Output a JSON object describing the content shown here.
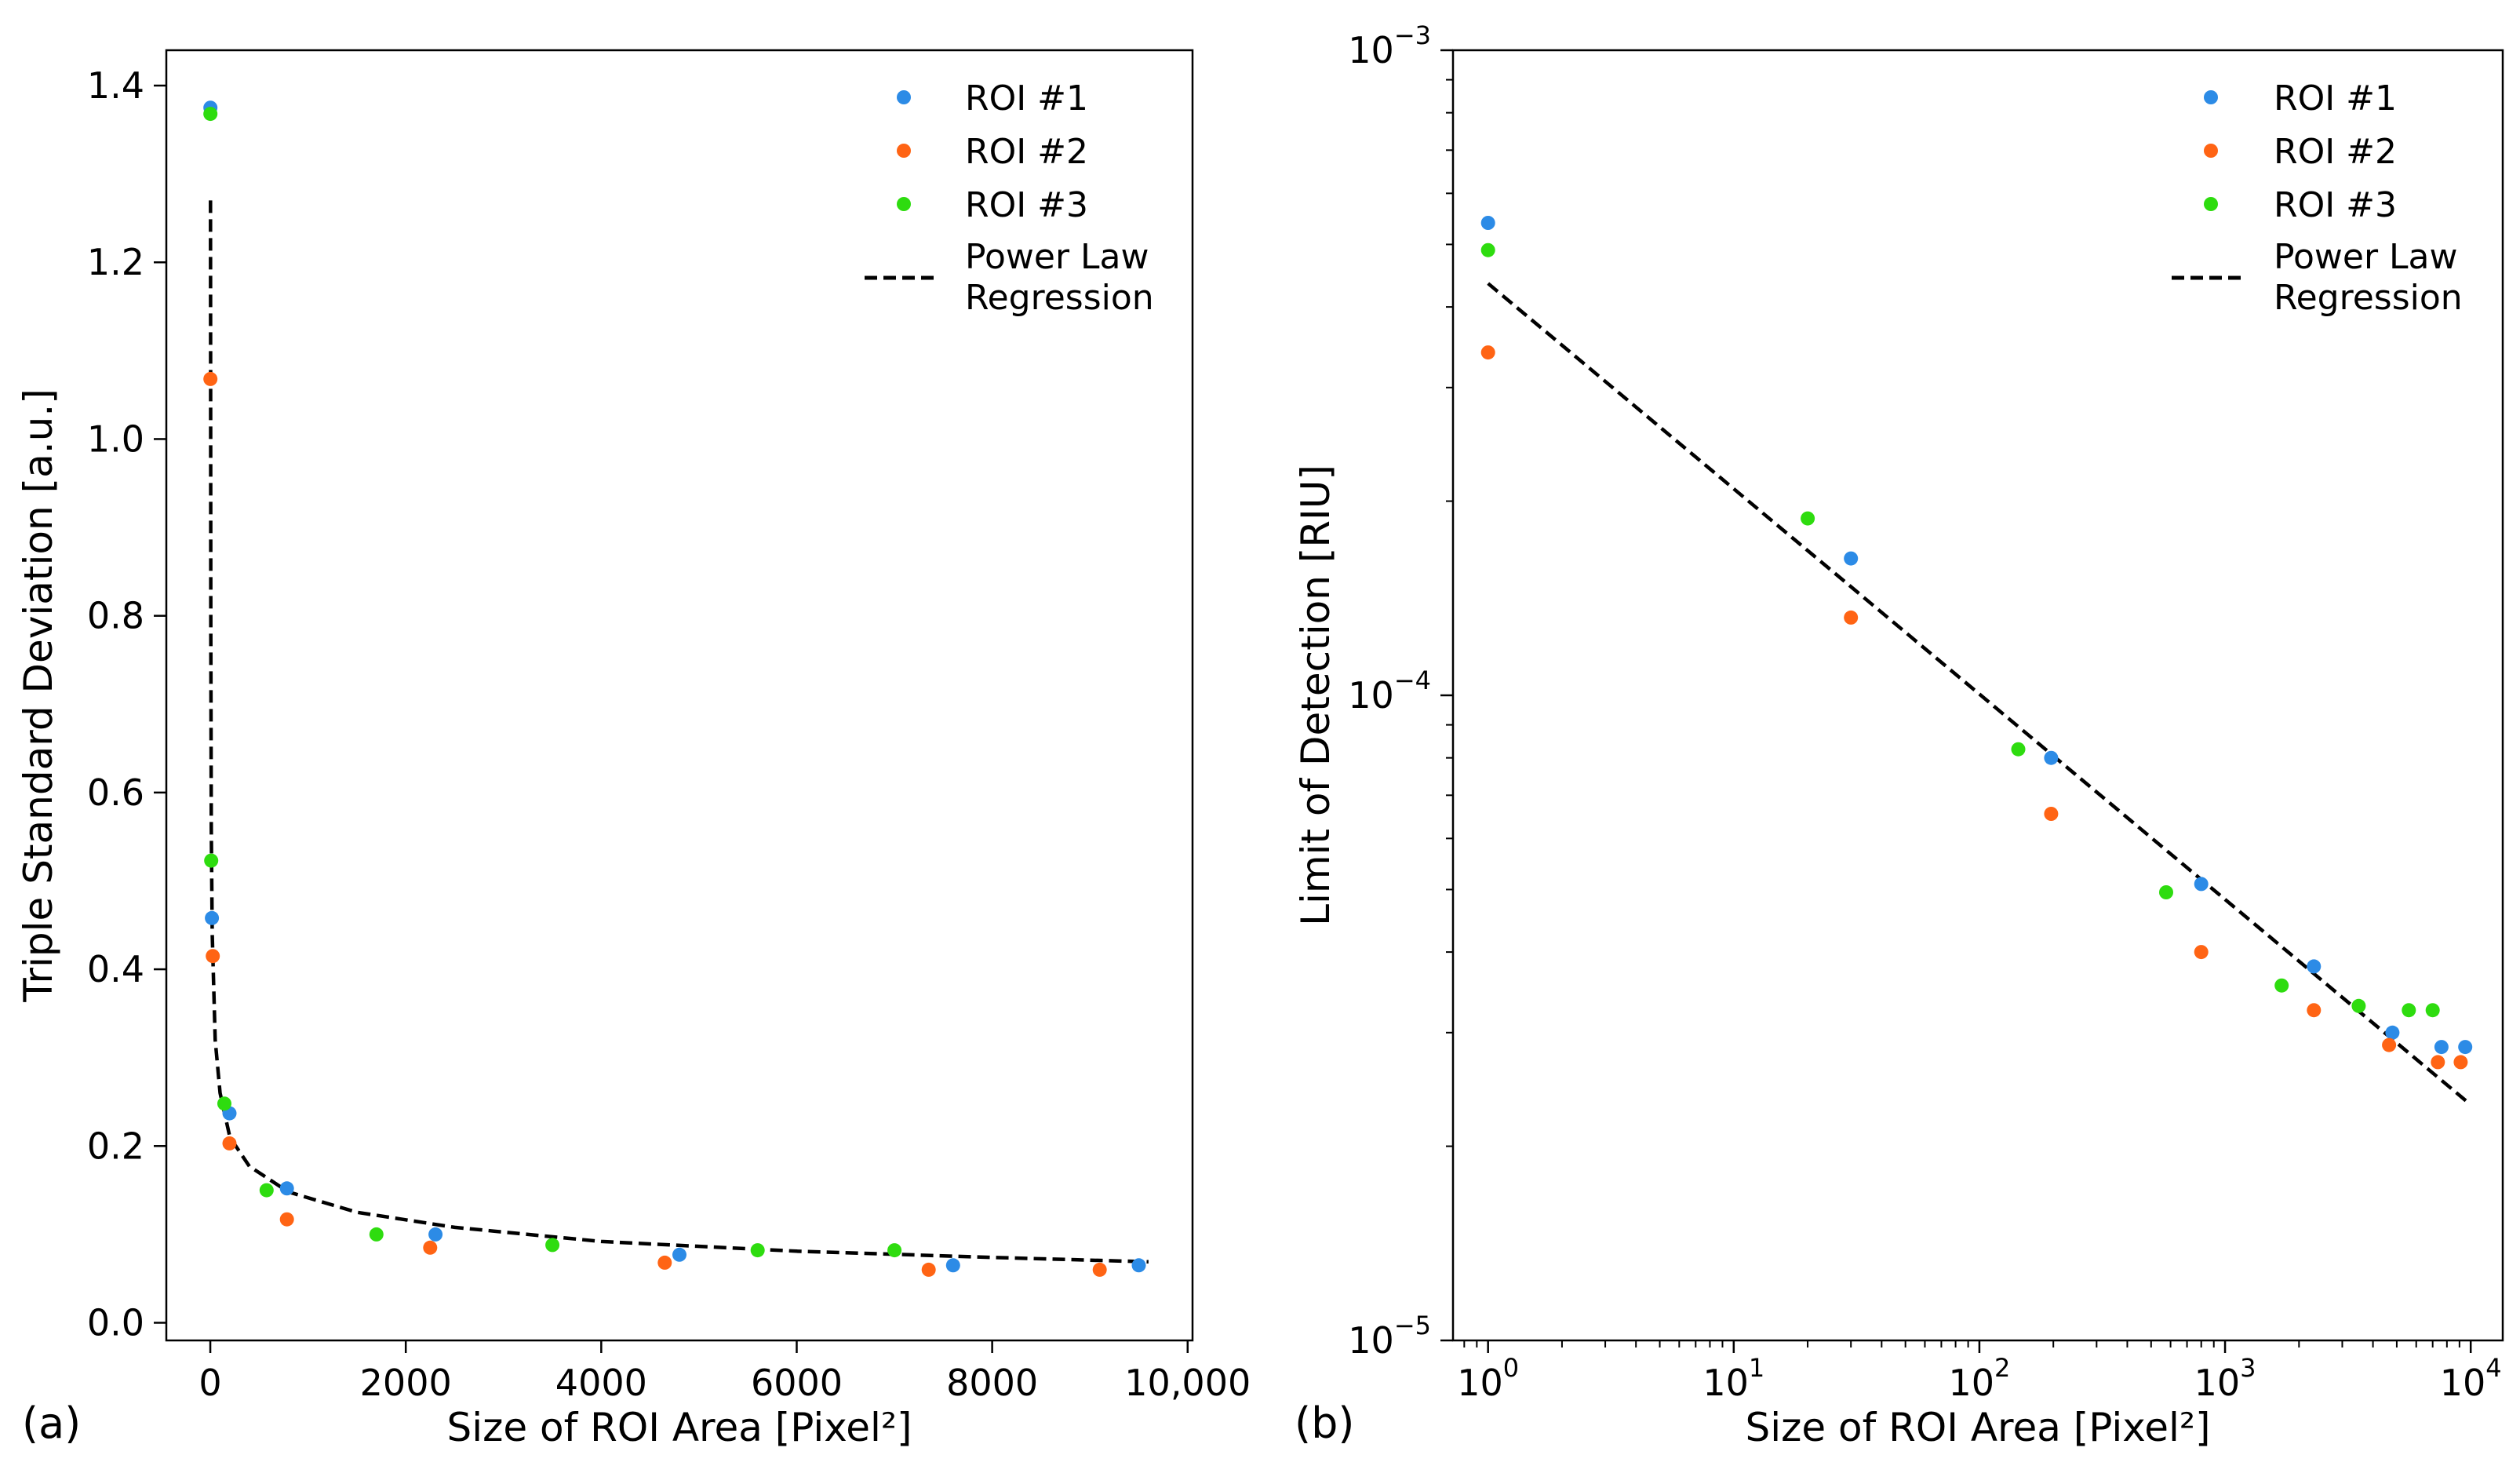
{
  "colors": {
    "roi1": "#2c8be6",
    "roi2": "#ff6414",
    "roi3": "#2edc0f",
    "fit": "#000000"
  },
  "chart_data": [
    {
      "type": "scatter",
      "panel_label": "(a)",
      "xlabel": "Size of ROI Area [Pixel²]",
      "ylabel": "Triple Standard Deviation [a.u.]",
      "xscale": "linear",
      "yscale": "linear",
      "xlim": [
        -450,
        10050
      ],
      "ylim": [
        -0.02,
        1.44
      ],
      "xticks": [
        0,
        2000,
        4000,
        6000,
        8000,
        10000
      ],
      "xtick_labels": [
        "0",
        "2000",
        "4000",
        "6000",
        "8000",
        "10,000"
      ],
      "yticks": [
        0.0,
        0.2,
        0.4,
        0.6,
        0.8,
        1.0,
        1.2,
        1.4
      ],
      "ytick_labels": [
        "0.0",
        "0.2",
        "0.4",
        "0.6",
        "0.8",
        "1.0",
        "1.2",
        "1.4"
      ],
      "legend_position": "top-right",
      "series": [
        {
          "name": "ROI #1",
          "color_key": "roi1",
          "points": [
            [
              1,
              1.375
            ],
            [
              16,
              0.458
            ],
            [
              196,
              0.237
            ],
            [
              784,
              0.152
            ],
            [
              2304,
              0.1
            ],
            [
              4800,
              0.077
            ],
            [
              7600,
              0.065
            ],
            [
              9500,
              0.065
            ]
          ]
        },
        {
          "name": "ROI #2",
          "color_key": "roi2",
          "points": [
            [
              1,
              1.068
            ],
            [
              25,
              0.415
            ],
            [
              196,
              0.203
            ],
            [
              784,
              0.117
            ],
            [
              2250,
              0.085
            ],
            [
              4650,
              0.068
            ],
            [
              7350,
              0.06
            ],
            [
              9100,
              0.06
            ]
          ]
        },
        {
          "name": "ROI #3",
          "color_key": "roi3",
          "points": [
            [
              1,
              1.368
            ],
            [
              9,
              0.523
            ],
            [
              144,
              0.248
            ],
            [
              576,
              0.15
            ],
            [
              1700,
              0.1
            ],
            [
              3500,
              0.088
            ],
            [
              5600,
              0.082
            ],
            [
              7000,
              0.082
            ]
          ]
        }
      ],
      "fit": {
        "name": "Power Law\nRegression",
        "legend_lines": [
          "Power Law",
          "Regression"
        ],
        "x_range": [
          2,
          9600
        ],
        "points": [
          [
            2,
            1.27
          ],
          [
            5,
            0.78
          ],
          [
            10,
            0.56
          ],
          [
            20,
            0.44
          ],
          [
            50,
            0.32
          ],
          [
            100,
            0.26
          ],
          [
            200,
            0.21
          ],
          [
            400,
            0.177
          ],
          [
            800,
            0.148
          ],
          [
            1500,
            0.125
          ],
          [
            2500,
            0.108
          ],
          [
            4000,
            0.092
          ],
          [
            6000,
            0.081
          ],
          [
            8000,
            0.074
          ],
          [
            9600,
            0.069
          ]
        ]
      }
    },
    {
      "type": "scatter",
      "panel_label": "(b)",
      "xlabel": "Size of ROI Area [Pixel²]",
      "ylabel": "Limit of Detection [RIU]",
      "xscale": "log",
      "yscale": "log",
      "xlim": [
        0.72,
        13500
      ],
      "ylim": [
        1e-05,
        0.001
      ],
      "xticks": [
        1,
        10,
        100,
        1000,
        10000
      ],
      "xtick_labels": [
        {
          "base": "10",
          "exp": "0"
        },
        {
          "base": "10",
          "exp": "1"
        },
        {
          "base": "10",
          "exp": "2"
        },
        {
          "base": "10",
          "exp": "3"
        },
        {
          "base": "10",
          "exp": "4"
        }
      ],
      "yticks": [
        1e-05,
        0.0001,
        0.001
      ],
      "ytick_labels": [
        {
          "base": "10",
          "exp": "−5"
        },
        {
          "base": "10",
          "exp": "−4"
        },
        {
          "base": "10",
          "exp": "−3"
        }
      ],
      "legend_position": "top-right",
      "series": [
        {
          "name": "ROI #1",
          "color_key": "roi1",
          "points": [
            [
              1,
              0.00054
            ],
            [
              30,
              0.000163
            ],
            [
              196,
              8e-05
            ],
            [
              800,
              5.1e-05
            ],
            [
              2300,
              3.8e-05
            ],
            [
              4800,
              3e-05
            ],
            [
              7600,
              2.85e-05
            ],
            [
              9500,
              2.85e-05
            ]
          ]
        },
        {
          "name": "ROI #2",
          "color_key": "roi2",
          "points": [
            [
              1,
              0.00034
            ],
            [
              30,
              0.000132
            ],
            [
              196,
              6.55e-05
            ],
            [
              800,
              4e-05
            ],
            [
              2300,
              3.25e-05
            ],
            [
              4650,
              2.87e-05
            ],
            [
              7350,
              2.7e-05
            ],
            [
              9100,
              2.7e-05
            ]
          ]
        },
        {
          "name": "ROI #3",
          "color_key": "roi3",
          "points": [
            [
              1,
              0.00049
            ],
            [
              20,
              0.000188
            ],
            [
              144,
              8.25e-05
            ],
            [
              576,
              4.95e-05
            ],
            [
              1700,
              3.55e-05
            ],
            [
              3500,
              3.3e-05
            ],
            [
              5600,
              3.25e-05
            ],
            [
              7000,
              3.25e-05
            ]
          ]
        }
      ],
      "fit": {
        "name": "Power Law\nRegression",
        "legend_lines": [
          "Power Law",
          "Regression"
        ],
        "x_range": [
          1,
          9600
        ],
        "points": [
          [
            1,
            0.000435
          ],
          [
            9600,
            2.35e-05
          ]
        ]
      }
    }
  ]
}
